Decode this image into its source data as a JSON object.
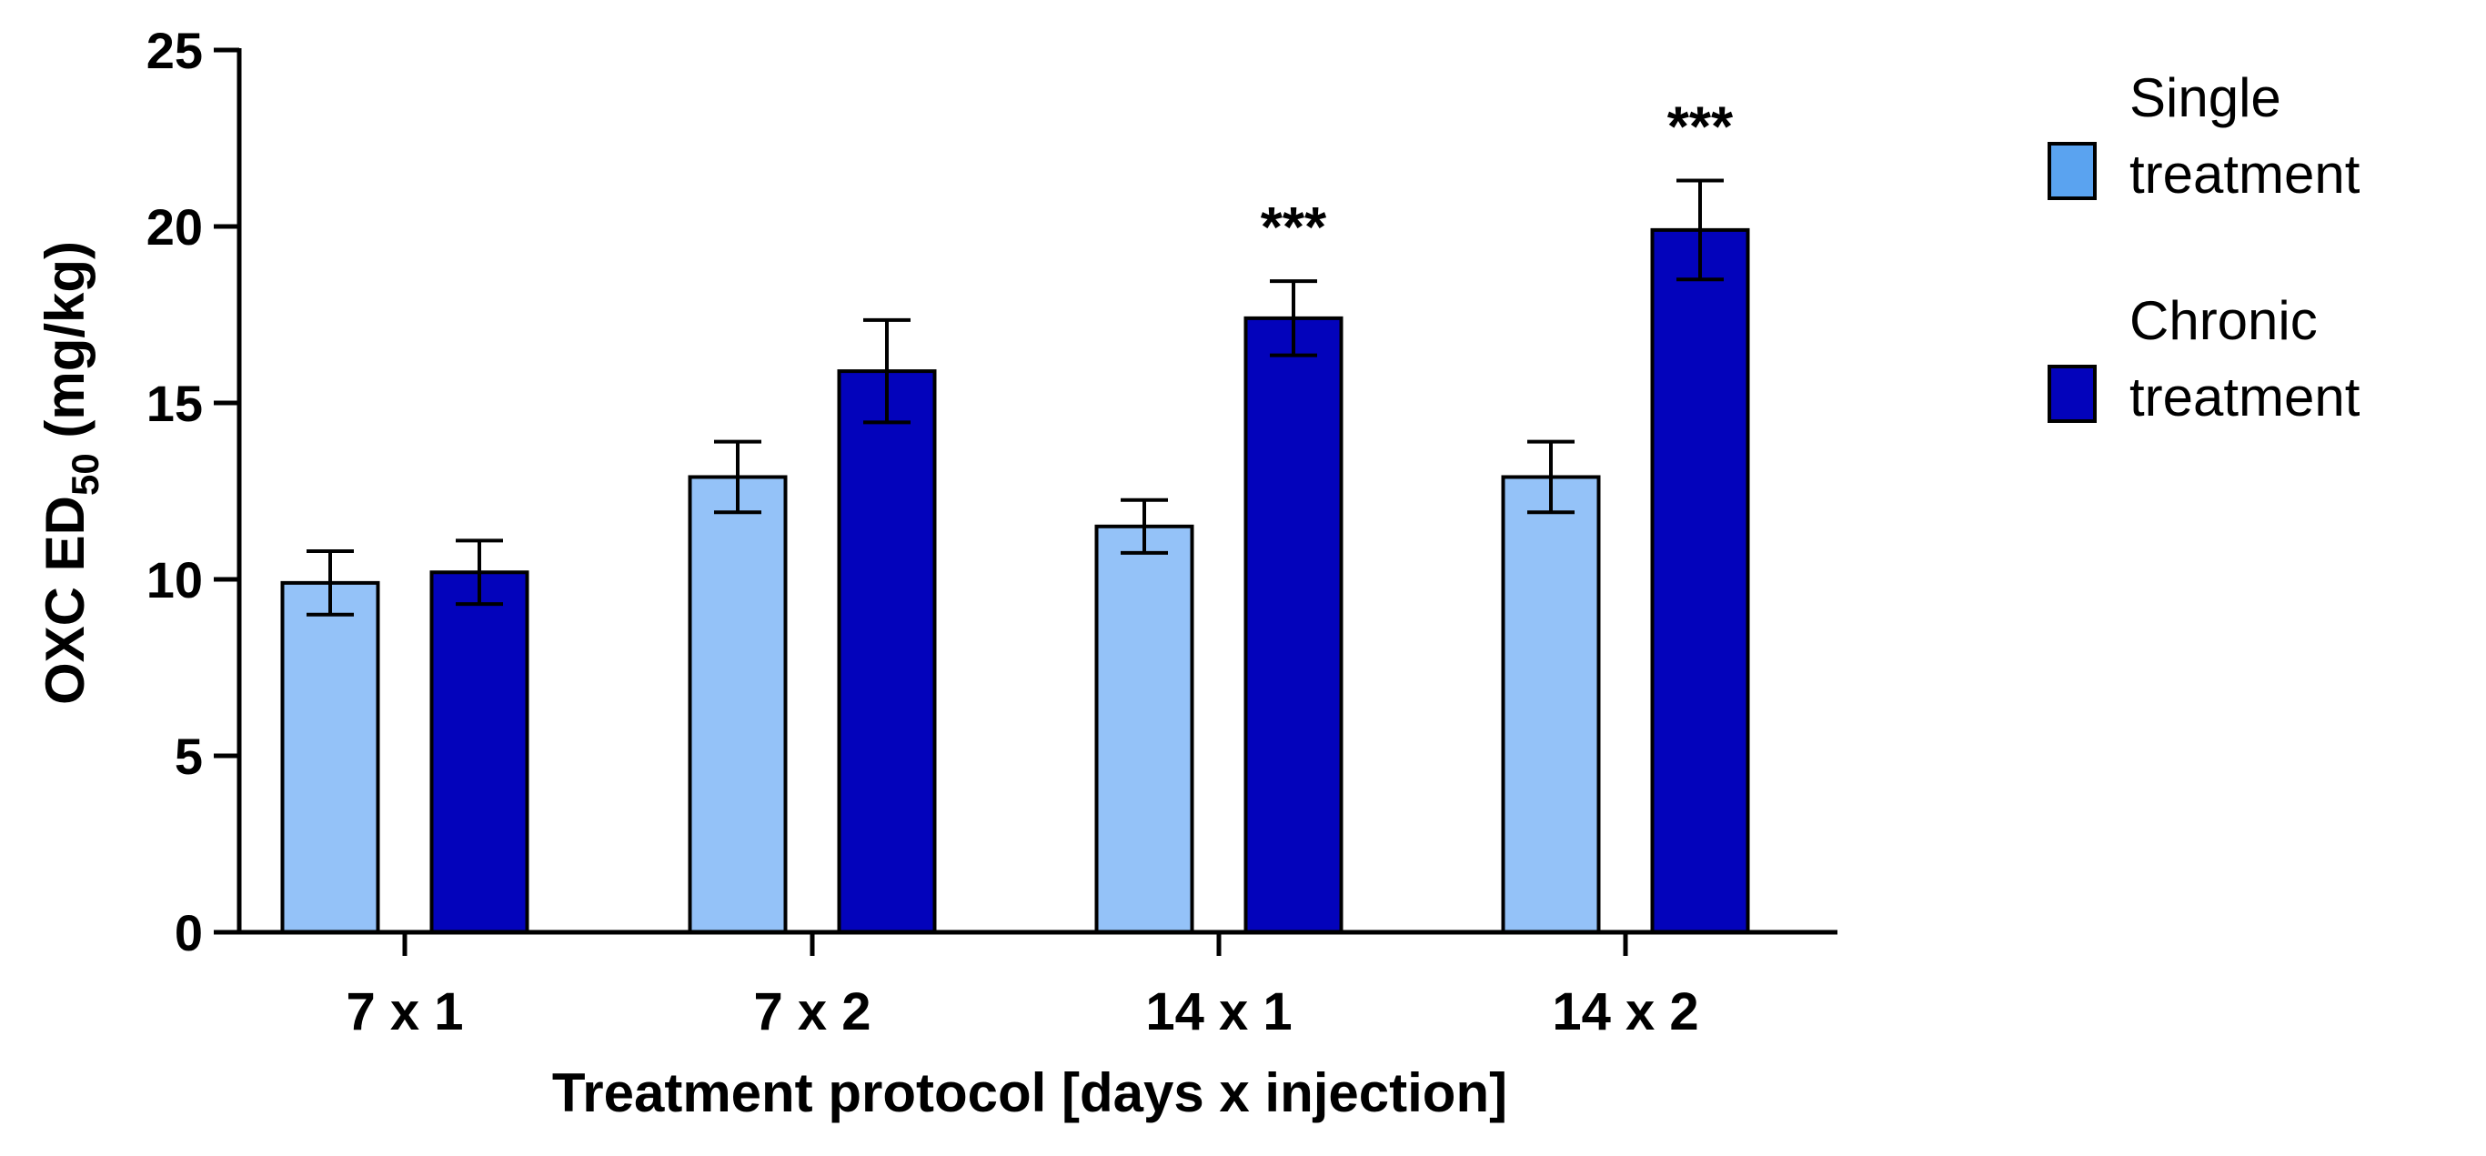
{
  "chart_data": {
    "type": "bar",
    "title": "",
    "xlabel": "Treatment protocol [days x injection]",
    "ylabel_main": "OXC ED",
    "ylabel_sub": "50",
    "ylabel_unit": " (mg/kg)",
    "ylim": [
      0,
      25
    ],
    "yticks": [
      0,
      5,
      10,
      15,
      20,
      25
    ],
    "categories": [
      "7 x 1",
      "7 x 2",
      "14 x 1",
      "14 x 2"
    ],
    "series": [
      {
        "name": "Single treatment",
        "legend_lines": [
          "Single",
          "treatment"
        ],
        "color": "#94c2f8",
        "legend_color": "#5aa3f0",
        "values": [
          9.9,
          12.9,
          11.5,
          12.9
        ],
        "errors": [
          0.9,
          1.0,
          0.75,
          1.0
        ],
        "annotations": [
          "",
          "",
          "",
          ""
        ]
      },
      {
        "name": "Chronic treatment",
        "legend_lines": [
          "Chronic",
          "treatment"
        ],
        "color": "#0303bb",
        "legend_color": "#0303bb",
        "values": [
          10.2,
          15.9,
          17.4,
          19.9
        ],
        "errors": [
          0.9,
          1.45,
          1.05,
          1.4
        ],
        "annotations": [
          "",
          "",
          "***",
          "***"
        ]
      }
    ],
    "legend_position": "right"
  }
}
